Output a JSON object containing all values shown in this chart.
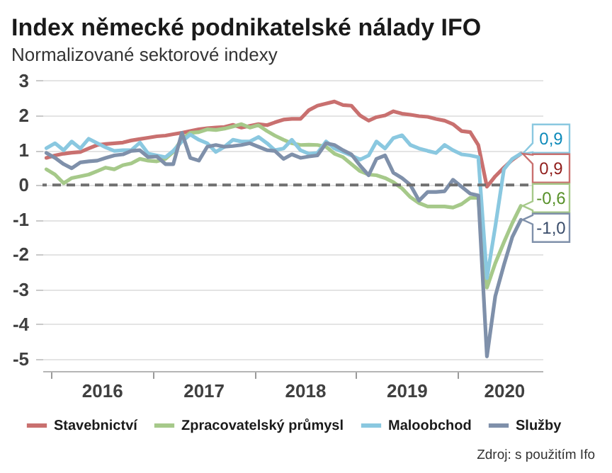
{
  "chart_data": {
    "type": "line",
    "title": "Index německé podnikatelské nálady IFO",
    "subtitle": "Normalizované sektorové indexy",
    "x": [
      "2015-12-15",
      "2016-01-15",
      "2016-02-15",
      "2016-03-15",
      "2016-04-15",
      "2016-05-15",
      "2016-06-15",
      "2016-07-15",
      "2016-08-15",
      "2016-09-15",
      "2016-10-15",
      "2016-11-15",
      "2016-12-15",
      "2017-01-15",
      "2017-02-15",
      "2017-03-15",
      "2017-04-15",
      "2017-05-15",
      "2017-06-15",
      "2017-07-15",
      "2017-08-15",
      "2017-09-15",
      "2017-10-15",
      "2017-11-15",
      "2017-12-15",
      "2018-01-15",
      "2018-02-15",
      "2018-03-15",
      "2018-04-15",
      "2018-05-15",
      "2018-06-15",
      "2018-07-15",
      "2018-08-15",
      "2018-09-15",
      "2018-10-15",
      "2018-11-15",
      "2018-12-15",
      "2019-01-15",
      "2019-02-15",
      "2019-03-15",
      "2019-04-15",
      "2019-05-15",
      "2019-06-15",
      "2019-07-15",
      "2019-08-15",
      "2019-09-15",
      "2019-10-15",
      "2019-11-15",
      "2019-12-15",
      "2020-01-15",
      "2020-02-15",
      "2020-03-15",
      "2020-04-15",
      "2020-05-15",
      "2020-06-15",
      "2020-07-15",
      "2020-08-15"
    ],
    "series": [
      {
        "name": "Stavebnictví",
        "color": "#c9706f",
        "values": [
          0.78,
          0.85,
          0.9,
          0.93,
          0.95,
          1.05,
          1.15,
          1.18,
          1.2,
          1.22,
          1.28,
          1.32,
          1.36,
          1.4,
          1.42,
          1.46,
          1.5,
          1.55,
          1.6,
          1.63,
          1.65,
          1.67,
          1.73,
          1.65,
          1.7,
          1.75,
          1.72,
          1.8,
          1.88,
          1.9,
          1.9,
          2.15,
          2.28,
          2.34,
          2.4,
          2.3,
          2.28,
          2.0,
          1.85,
          1.95,
          2.0,
          2.12,
          2.05,
          2.02,
          1.98,
          1.96,
          1.9,
          1.85,
          1.75,
          1.55,
          1.52,
          1.15,
          -0.05,
          0.25,
          0.5,
          0.72,
          0.9
        ],
        "value_labels": [
          null,
          null,
          null,
          null,
          null,
          null,
          null,
          null,
          null,
          null,
          null,
          null,
          null,
          null,
          null,
          null,
          null,
          null,
          null,
          null,
          null,
          null,
          null,
          null,
          null,
          null,
          null,
          null,
          null,
          null,
          null,
          null,
          null,
          null,
          null,
          null,
          null,
          null,
          null,
          null,
          null,
          null,
          null,
          null,
          null,
          null,
          null,
          null,
          null,
          null,
          null,
          null,
          null,
          null,
          null,
          null,
          "0,9"
        ]
      },
      {
        "name": "Zpracovatelský průmysl",
        "color": "#a6c98a",
        "values": [
          0.45,
          0.3,
          0.05,
          0.2,
          0.25,
          0.3,
          0.4,
          0.5,
          0.45,
          0.57,
          0.62,
          0.75,
          0.7,
          0.68,
          0.75,
          0.95,
          1.32,
          1.5,
          1.52,
          1.6,
          1.58,
          1.62,
          1.68,
          1.75,
          1.65,
          1.72,
          1.55,
          1.42,
          1.3,
          1.2,
          1.15,
          1.16,
          1.15,
          1.1,
          0.9,
          0.8,
          0.6,
          0.4,
          0.3,
          0.28,
          0.2,
          0.08,
          -0.1,
          -0.35,
          -0.52,
          -0.62,
          -0.62,
          -0.62,
          -0.65,
          -0.55,
          -0.37,
          -0.37,
          -2.95,
          -2.25,
          -1.65,
          -1.1,
          -0.6
        ],
        "value_labels": [
          null,
          null,
          null,
          null,
          null,
          null,
          null,
          null,
          null,
          null,
          null,
          null,
          null,
          null,
          null,
          null,
          null,
          null,
          null,
          null,
          null,
          null,
          null,
          null,
          null,
          null,
          null,
          null,
          null,
          null,
          null,
          null,
          null,
          null,
          null,
          null,
          null,
          null,
          null,
          null,
          null,
          null,
          null,
          null,
          null,
          null,
          null,
          null,
          null,
          null,
          null,
          null,
          null,
          null,
          null,
          null,
          "-0,6"
        ]
      },
      {
        "name": "Maloobchod",
        "color": "#8ac8e0",
        "values": [
          1.06,
          1.2,
          1.0,
          1.25,
          1.05,
          1.33,
          1.2,
          1.08,
          0.98,
          1.0,
          1.0,
          1.22,
          0.9,
          0.85,
          0.8,
          0.98,
          1.25,
          1.45,
          1.3,
          1.2,
          0.95,
          1.1,
          1.3,
          1.25,
          1.25,
          1.38,
          1.2,
          1.0,
          1.05,
          1.3,
          1.0,
          0.9,
          0.92,
          1.25,
          1.05,
          0.95,
          0.85,
          0.73,
          0.85,
          1.25,
          1.05,
          1.35,
          1.43,
          1.15,
          1.05,
          0.98,
          0.92,
          1.15,
          1.0,
          0.88,
          0.85,
          0.8,
          -2.68,
          -1.2,
          0.45,
          0.75,
          0.9
        ],
        "value_labels": [
          null,
          null,
          null,
          null,
          null,
          null,
          null,
          null,
          null,
          null,
          null,
          null,
          null,
          null,
          null,
          null,
          null,
          null,
          null,
          null,
          null,
          null,
          null,
          null,
          null,
          null,
          null,
          null,
          null,
          null,
          null,
          null,
          null,
          null,
          null,
          null,
          null,
          null,
          null,
          null,
          null,
          null,
          null,
          null,
          null,
          null,
          null,
          null,
          null,
          null,
          null,
          null,
          null,
          null,
          null,
          null,
          "0,9"
        ]
      },
      {
        "name": "Služby",
        "color": "#7f90aa",
        "values": [
          0.92,
          0.78,
          0.6,
          0.48,
          0.65,
          0.68,
          0.7,
          0.78,
          0.85,
          0.88,
          0.98,
          1.0,
          0.8,
          0.82,
          0.6,
          0.6,
          1.5,
          0.78,
          0.7,
          1.1,
          1.15,
          1.1,
          1.12,
          1.15,
          1.2,
          1.1,
          1.0,
          0.98,
          0.75,
          0.88,
          0.78,
          0.82,
          0.85,
          1.2,
          1.15,
          1.0,
          0.88,
          0.56,
          0.28,
          0.75,
          0.85,
          0.35,
          0.2,
          0.0,
          -0.45,
          -0.2,
          -0.2,
          -0.18,
          0.15,
          -0.05,
          -0.25,
          -0.3,
          -4.93,
          -3.2,
          -2.3,
          -1.5,
          -1.0
        ],
        "value_labels": [
          null,
          null,
          null,
          null,
          null,
          null,
          null,
          null,
          null,
          null,
          null,
          null,
          null,
          null,
          null,
          null,
          null,
          null,
          null,
          null,
          null,
          null,
          null,
          null,
          null,
          null,
          null,
          null,
          null,
          null,
          null,
          null,
          null,
          null,
          null,
          null,
          null,
          null,
          null,
          null,
          null,
          null,
          null,
          null,
          null,
          null,
          null,
          null,
          null,
          null,
          null,
          null,
          null,
          null,
          null,
          null,
          "-1,0"
        ]
      }
    ],
    "xlim": [
      "2015-12",
      "2020-11"
    ],
    "xticks": [
      {
        "value": "2016",
        "label": null
      },
      {
        "value": "2016-07",
        "label": "2016"
      },
      {
        "value": "2017",
        "label": null
      },
      {
        "value": "2017-07",
        "label": "2017"
      },
      {
        "value": "2018",
        "label": null
      },
      {
        "value": "2018-07",
        "label": "2018"
      },
      {
        "value": "2019",
        "label": null
      },
      {
        "value": "2019-07",
        "label": "2019"
      },
      {
        "value": "2020",
        "label": null
      },
      {
        "value": "2020-06-15",
        "label": "2020"
      }
    ],
    "ylim": [
      -5.35,
      3.1
    ],
    "yticks": [
      -5,
      -4,
      -3,
      -2,
      -1,
      0,
      1,
      2,
      3
    ],
    "grid": "y",
    "legend": "bottom",
    "ref_lines": [
      {
        "axis": "y",
        "value": 0,
        "color": "#707070",
        "line_style": "dashed"
      }
    ],
    "annotations": [
      "Zdroj: s použitím Ifo"
    ]
  }
}
